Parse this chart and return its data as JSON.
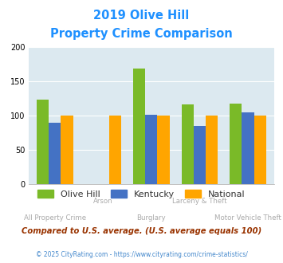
{
  "title_line1": "2019 Olive Hill",
  "title_line2": "Property Crime Comparison",
  "categories": [
    "All Property Crime",
    "Arson",
    "Burglary",
    "Larceny & Theft",
    "Motor Vehicle Theft"
  ],
  "olive_hill": [
    124,
    0,
    169,
    116,
    118
  ],
  "kentucky": [
    90,
    0,
    101,
    85,
    105
  ],
  "national": [
    100,
    100,
    100,
    100,
    100
  ],
  "color_olive": "#7aba28",
  "color_kentucky": "#4472c4",
  "color_national": "#ffa500",
  "color_bg": "#dce9f0",
  "color_title": "#1e90ff",
  "ylim": [
    0,
    200
  ],
  "yticks": [
    0,
    50,
    100,
    150,
    200
  ],
  "legend_labels": [
    "Olive Hill",
    "Kentucky",
    "National"
  ],
  "footnote1": "Compared to U.S. average. (U.S. average equals 100)",
  "footnote2": "© 2025 CityRating.com - https://www.cityrating.com/crime-statistics/",
  "bar_width": 0.25
}
